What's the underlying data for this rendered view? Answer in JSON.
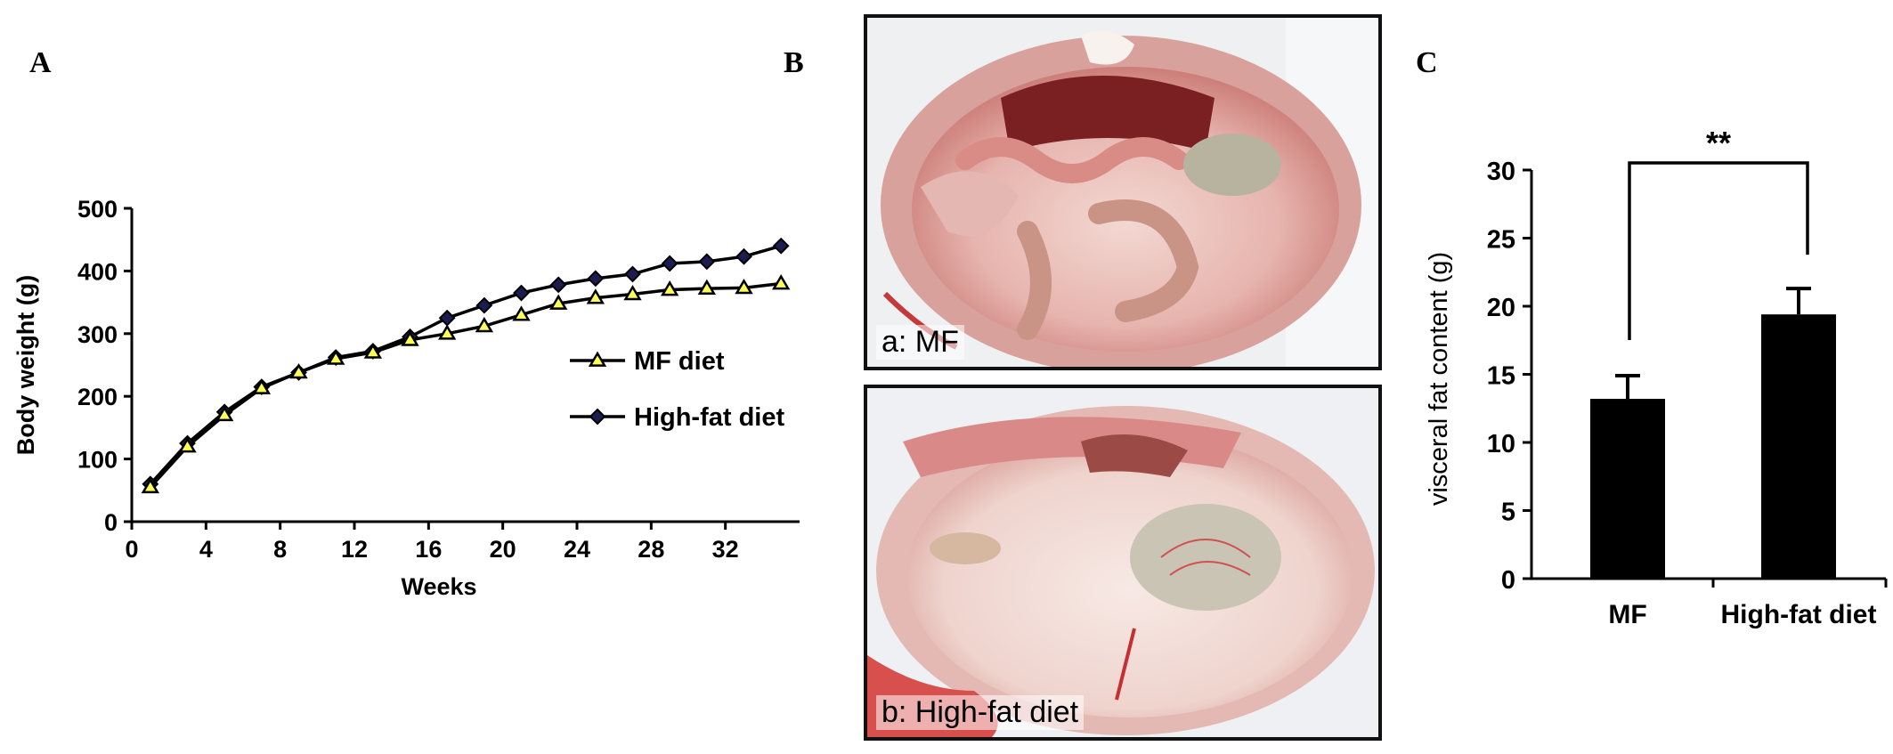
{
  "panels": {
    "a": "A",
    "b": "B",
    "c": "C"
  },
  "photos": {
    "top_caption": "a:  MF",
    "bottom_caption": "b: High-fat diet"
  },
  "chart_data": [
    {
      "type": "line",
      "title": "",
      "xlabel": "Weeks",
      "ylabel": "Body weight (g)",
      "xlim": [
        0,
        36
      ],
      "ylim": [
        0,
        500
      ],
      "xticks": [
        0,
        4,
        8,
        12,
        16,
        20,
        24,
        28,
        32
      ],
      "yticks": [
        0,
        100,
        200,
        300,
        400,
        500
      ],
      "x": [
        1,
        3,
        5,
        7,
        9,
        11,
        13,
        15,
        17,
        19,
        21,
        23,
        25,
        27,
        29,
        31,
        33,
        35
      ],
      "series": [
        {
          "name": "MF diet",
          "marker": "triangle",
          "color": "#ffff55",
          "values": [
            55,
            120,
            170,
            213,
            238,
            260,
            270,
            290,
            300,
            312,
            330,
            348,
            357,
            363,
            370,
            372,
            373,
            380
          ]
        },
        {
          "name": "High-fat diet",
          "marker": "diamond",
          "color": "#1c1c50",
          "values": [
            60,
            125,
            175,
            215,
            238,
            262,
            272,
            295,
            325,
            345,
            365,
            378,
            388,
            395,
            412,
            415,
            423,
            440
          ]
        }
      ],
      "legend": "center-right",
      "grid": false
    },
    {
      "type": "bar",
      "title": "",
      "xlabel": "",
      "ylabel": "visceral fat content (g)",
      "ylim": [
        0,
        30
      ],
      "yticks": [
        0,
        5,
        10,
        15,
        20,
        25,
        30
      ],
      "categories": [
        "MF",
        "High-fat diet"
      ],
      "values": [
        13.2,
        19.4
      ],
      "errors": [
        1.7,
        1.9
      ],
      "significance": "**",
      "grid": false
    }
  ]
}
